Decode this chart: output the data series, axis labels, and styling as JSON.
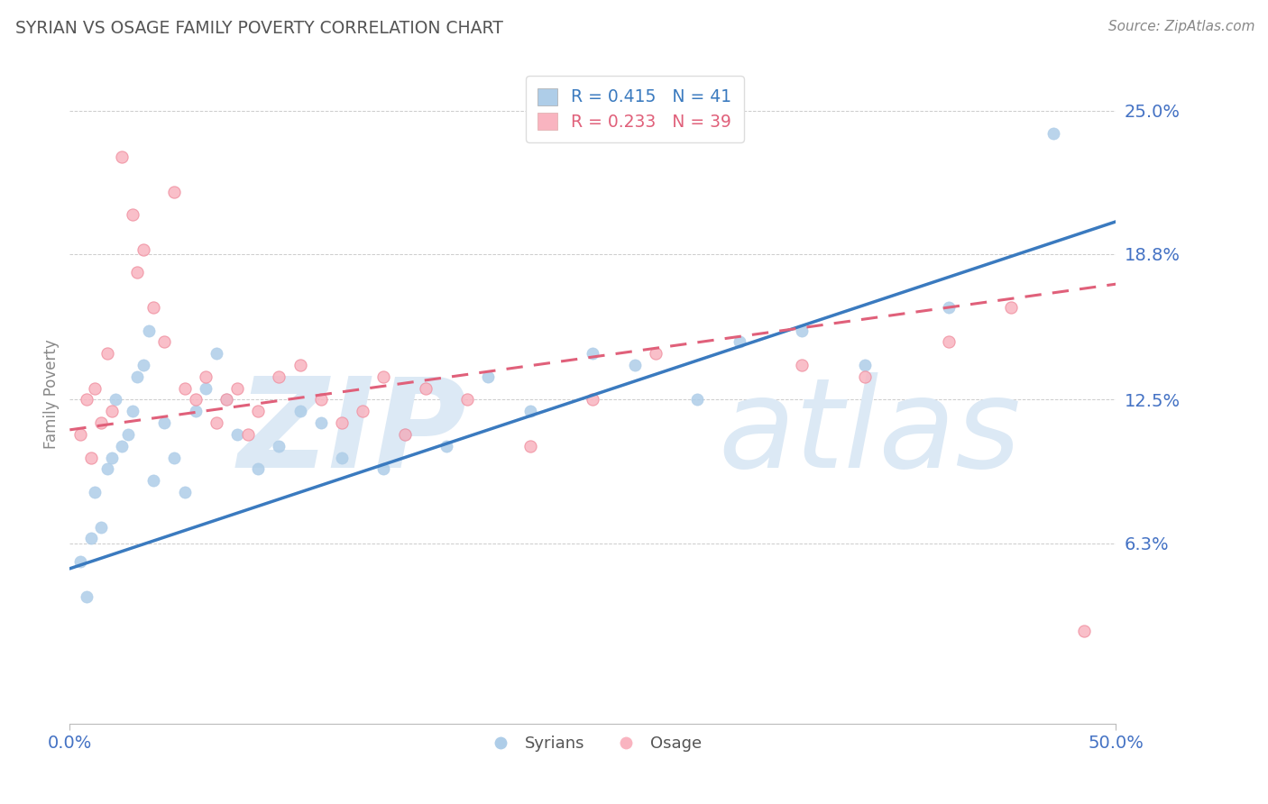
{
  "title": "SYRIAN VS OSAGE FAMILY POVERTY CORRELATION CHART",
  "source": "Source: ZipAtlas.com",
  "ylabel": "Family Poverty",
  "xmin": 0.0,
  "xmax": 50.0,
  "ymin": -1.5,
  "ymax": 27.0,
  "ytick_values": [
    6.3,
    12.5,
    18.8,
    25.0
  ],
  "xtick_values": [
    0.0,
    50.0
  ],
  "syrians_R": 0.415,
  "syrians_N": 41,
  "osage_R": 0.233,
  "osage_N": 39,
  "blue_scatter_color": "#aecde8",
  "pink_scatter_color": "#f9b4c0",
  "blue_line_color": "#3a7abf",
  "pink_line_color": "#e0607a",
  "title_color": "#555555",
  "axis_tick_color": "#4472c4",
  "watermark_color": "#dce9f5",
  "background_color": "#ffffff",
  "grid_color": "#cccccc",
  "source_color": "#888888",
  "ylabel_color": "#888888",
  "syrians_x": [
    0.5,
    0.8,
    1.0,
    1.2,
    1.5,
    1.8,
    2.0,
    2.2,
    2.5,
    2.8,
    3.0,
    3.2,
    3.5,
    3.8,
    4.0,
    4.5,
    5.0,
    5.5,
    6.0,
    6.5,
    7.0,
    7.5,
    8.0,
    9.0,
    10.0,
    11.0,
    12.0,
    13.0,
    15.0,
    16.0,
    18.0,
    20.0,
    22.0,
    25.0,
    27.0,
    30.0,
    32.0,
    35.0,
    38.0,
    42.0,
    47.0
  ],
  "syrians_y": [
    5.5,
    4.0,
    6.5,
    8.5,
    7.0,
    9.5,
    10.0,
    12.5,
    10.5,
    11.0,
    12.0,
    13.5,
    14.0,
    15.5,
    9.0,
    11.5,
    10.0,
    8.5,
    12.0,
    13.0,
    14.5,
    12.5,
    11.0,
    9.5,
    10.5,
    12.0,
    11.5,
    10.0,
    9.5,
    11.0,
    10.5,
    13.5,
    12.0,
    14.5,
    14.0,
    12.5,
    15.0,
    15.5,
    14.0,
    16.5,
    24.0
  ],
  "osage_x": [
    0.5,
    0.8,
    1.0,
    1.2,
    1.5,
    1.8,
    2.0,
    2.5,
    3.0,
    3.2,
    3.5,
    4.0,
    4.5,
    5.0,
    5.5,
    6.0,
    6.5,
    7.0,
    7.5,
    8.0,
    8.5,
    9.0,
    10.0,
    11.0,
    12.0,
    13.0,
    14.0,
    15.0,
    16.0,
    17.0,
    19.0,
    22.0,
    25.0,
    28.0,
    35.0,
    38.0,
    42.0,
    45.0,
    48.5
  ],
  "osage_y": [
    11.0,
    12.5,
    10.0,
    13.0,
    11.5,
    14.5,
    12.0,
    23.0,
    20.5,
    18.0,
    19.0,
    16.5,
    15.0,
    21.5,
    13.0,
    12.5,
    13.5,
    11.5,
    12.5,
    13.0,
    11.0,
    12.0,
    13.5,
    14.0,
    12.5,
    11.5,
    12.0,
    13.5,
    11.0,
    13.0,
    12.5,
    10.5,
    12.5,
    14.5,
    14.0,
    13.5,
    15.0,
    16.5,
    2.5
  ]
}
